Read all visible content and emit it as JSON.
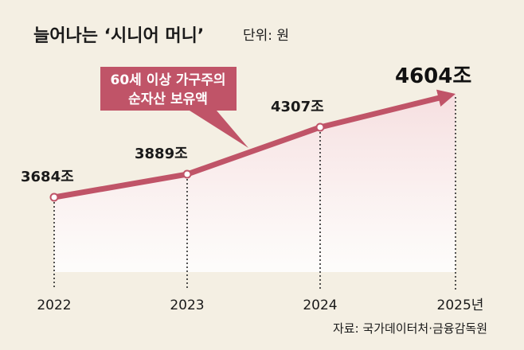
{
  "title": "늘어나는 ‘시니어 머니’",
  "unit": "단위: 원",
  "callout": {
    "line1": "60세 이상 가구주의",
    "line2": "순자산 보유액"
  },
  "source": "자료: 국가데이터처·금융감독원",
  "colors": {
    "background": "#f4efe3",
    "line": "#c05468",
    "callout_fill": "#c05468",
    "area_top": "#f6dfe0",
    "area_bottom": "#ffffff"
  },
  "chart_data": {
    "type": "line",
    "categories": [
      "2022",
      "2023",
      "2024",
      "2025년"
    ],
    "values": [
      3684,
      3889,
      4307,
      4604
    ],
    "value_labels": [
      "3684조",
      "3889조",
      "4307조",
      "4604조"
    ],
    "ylim": [
      3200,
      4800
    ],
    "grid": false,
    "legend": "none",
    "last_point": "arrow"
  }
}
